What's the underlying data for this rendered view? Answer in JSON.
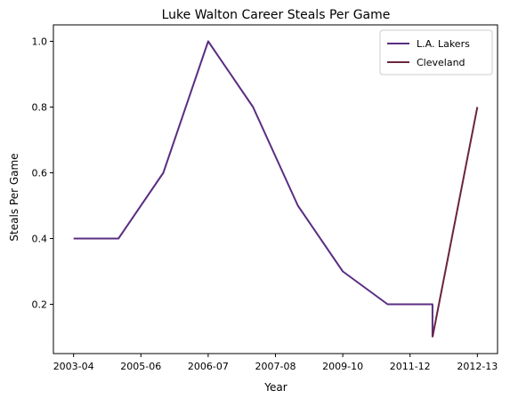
{
  "chart_data": {
    "type": "line",
    "title": "Luke Walton Career Steals Per Game",
    "xlabel": "Year",
    "ylabel": "Steals Per Game",
    "categories": [
      "2003-04",
      "2004-05",
      "2005-06",
      "2006-07",
      "2007-08",
      "2008-09",
      "2009-10",
      "2010-11",
      "2011-12",
      "2011-12",
      "2012-13"
    ],
    "x_tick_labels": [
      "2003-04",
      "2005-06",
      "2006-07",
      "2007-08",
      "2009-10",
      "2011-12",
      "2012-13"
    ],
    "y_ticks": [
      0.2,
      0.4,
      0.6,
      0.8,
      1.0
    ],
    "ylim": [
      0.05,
      1.05
    ],
    "grid": false,
    "legend_position": "top-right",
    "series": [
      {
        "name": "L.A. Lakers",
        "color": "#5a2d82",
        "points": [
          {
            "x": "2003-04",
            "y": 0.4
          },
          {
            "x": "2004-05",
            "y": 0.4
          },
          {
            "x": "2005-06",
            "y": 0.6
          },
          {
            "x": "2006-07",
            "y": 1.0
          },
          {
            "x": "2007-08",
            "y": 0.8
          },
          {
            "x": "2008-09",
            "y": 0.5
          },
          {
            "x": "2009-10",
            "y": 0.3
          },
          {
            "x": "2010-11",
            "y": 0.2
          },
          {
            "x": "2011-12",
            "y": 0.2
          },
          {
            "x": "2011-12",
            "y": 0.1
          }
        ]
      },
      {
        "name": "Cleveland",
        "color": "#6b2440",
        "points": [
          {
            "x": "2011-12",
            "y": 0.1
          },
          {
            "x": "2012-13",
            "y": 0.8
          }
        ]
      }
    ]
  }
}
